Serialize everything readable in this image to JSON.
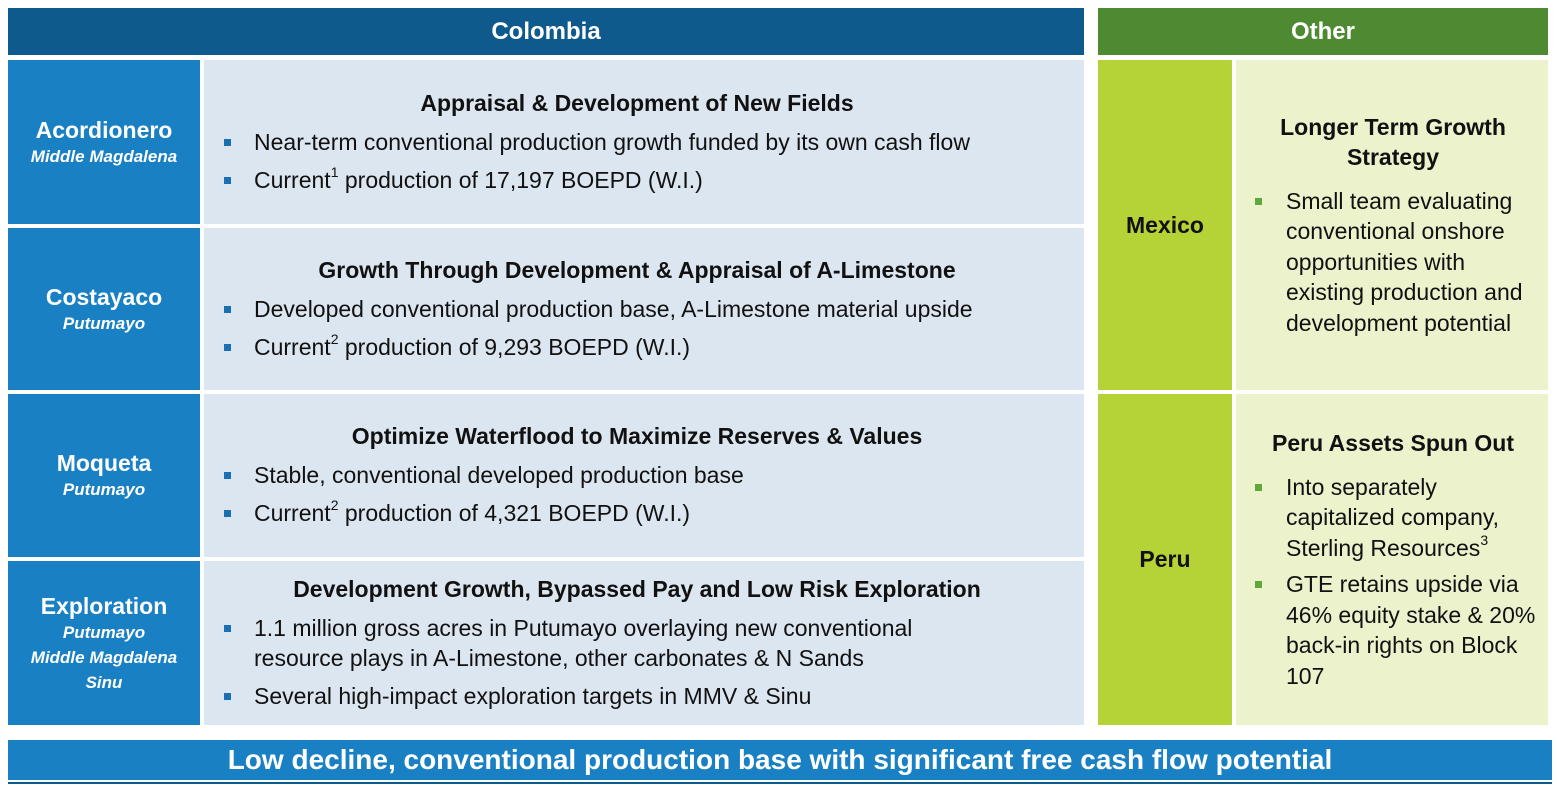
{
  "headers": {
    "colombia": "Colombia",
    "other": "Other"
  },
  "colombia": [
    {
      "name": "Acordionero",
      "regions": [
        "Middle Magdalena"
      ],
      "title": "Appraisal & Development of New Fields",
      "bullets": [
        {
          "pre": "Near-term conventional production growth funded by its own cash flow",
          "sup": "",
          "post": ""
        },
        {
          "pre": "Current",
          "sup": "1",
          "post": " production of 17,197 BOEPD (W.I.)"
        }
      ]
    },
    {
      "name": "Costayaco",
      "regions": [
        "Putumayo"
      ],
      "title": "Growth Through Development & Appraisal of A-Limestone",
      "bullets": [
        {
          "pre": "Developed conventional production base, A-Limestone material upside",
          "sup": "",
          "post": ""
        },
        {
          "pre": "Current",
          "sup": "2",
          "post": " production of 9,293 BOEPD (W.I.)"
        }
      ]
    },
    {
      "name": "Moqueta",
      "regions": [
        "Putumayo"
      ],
      "title": "Optimize Waterflood to Maximize Reserves & Values",
      "bullets": [
        {
          "pre": "Stable, conventional developed production base",
          "sup": "",
          "post": ""
        },
        {
          "pre": "Current",
          "sup": "2",
          "post": " production of 4,321 BOEPD (W.I.)"
        }
      ]
    },
    {
      "name": "Exploration",
      "regions": [
        "Putumayo",
        "Middle Magdalena",
        "Sinu"
      ],
      "title": "Development Growth, Bypassed Pay and Low Risk Exploration",
      "bullets": [
        {
          "pre": "1.1 million gross acres in Putumayo overlaying new conventional resource plays in A-Limestone, other carbonates & N Sands",
          "sup": "",
          "post": ""
        },
        {
          "pre": "Several high-impact exploration targets in MMV & Sinu",
          "sup": "",
          "post": ""
        }
      ]
    }
  ],
  "other": [
    {
      "name": "Mexico",
      "title": "Longer Term Growth Strategy",
      "bullets": [
        {
          "pre": "Small team evaluating conventional onshore opportunities with existing production and development potential",
          "sup": "",
          "post": ""
        }
      ]
    },
    {
      "name": "Peru",
      "title": "Peru Assets Spun Out",
      "bullets": [
        {
          "pre": "Into separately capitalized company, Sterling Resources",
          "sup": "3",
          "post": ""
        },
        {
          "pre": "GTE retains upside via 46% equity stake & 20% back-in rights on Block 107",
          "sup": "",
          "post": ""
        }
      ]
    }
  ],
  "banner": "Low decline, conventional production base with significant free cash flow potential",
  "colors": {
    "colombia_header": "#0e5a8c",
    "other_header": "#4e8a32",
    "label_blue": "#1a80c4",
    "body_blue": "#dce6f0",
    "label_green": "#b5d337",
    "body_green": "#ebf2cc"
  }
}
